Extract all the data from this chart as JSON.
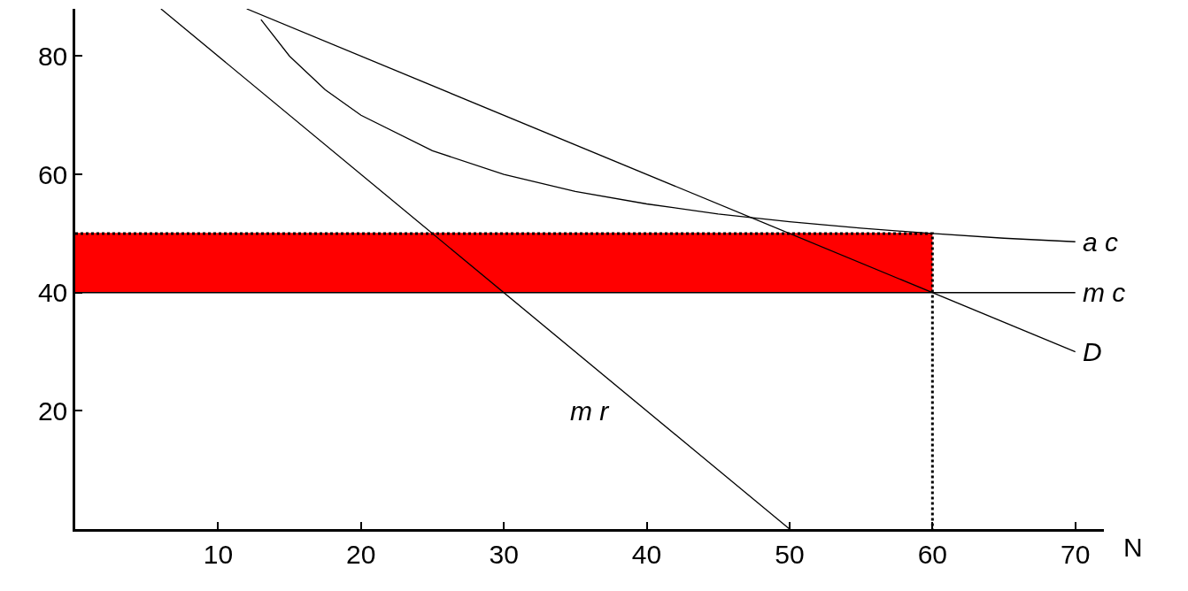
{
  "chart_data": {
    "type": "line",
    "xlabel": "N",
    "xlim": [
      0,
      72
    ],
    "ylim": [
      0,
      88
    ],
    "xticks": [
      10,
      20,
      30,
      40,
      50,
      60,
      70
    ],
    "yticks": [
      20,
      40,
      60,
      80
    ],
    "legend": false,
    "series": [
      {
        "color": "#ff0000",
        "x": [
          0,
          60
        ],
        "values": [
          50,
          50
        ],
        "lower": [
          40,
          40
        ],
        "upper": [
          50,
          50
        ]
      },
      {
        "color": "#000000",
        "x": [
          0,
          60,
          60
        ],
        "values": [
          50,
          50,
          0
        ],
        "line_style": "dotted"
      },
      {
        "name": "a c",
        "color": "#000000",
        "x": [
          13,
          15,
          17.5,
          20,
          25,
          30,
          35,
          40,
          45,
          50,
          55,
          60,
          65,
          70
        ],
        "values": [
          86.2,
          80,
          74.3,
          70,
          64,
          60,
          57.1,
          55,
          53.3,
          52,
          50.9,
          50,
          49.2,
          48.6
        ]
      },
      {
        "name": "m c",
        "color": "#000000",
        "x": [
          0,
          70
        ],
        "values": [
          40,
          40
        ]
      },
      {
        "name": "D",
        "color": "#000000",
        "x": [
          12,
          70
        ],
        "values": [
          88,
          30
        ]
      },
      {
        "color": "#000000",
        "x": [
          6,
          50
        ],
        "values": [
          88,
          0
        ]
      }
    ],
    "annotations": [
      "m r"
    ]
  }
}
